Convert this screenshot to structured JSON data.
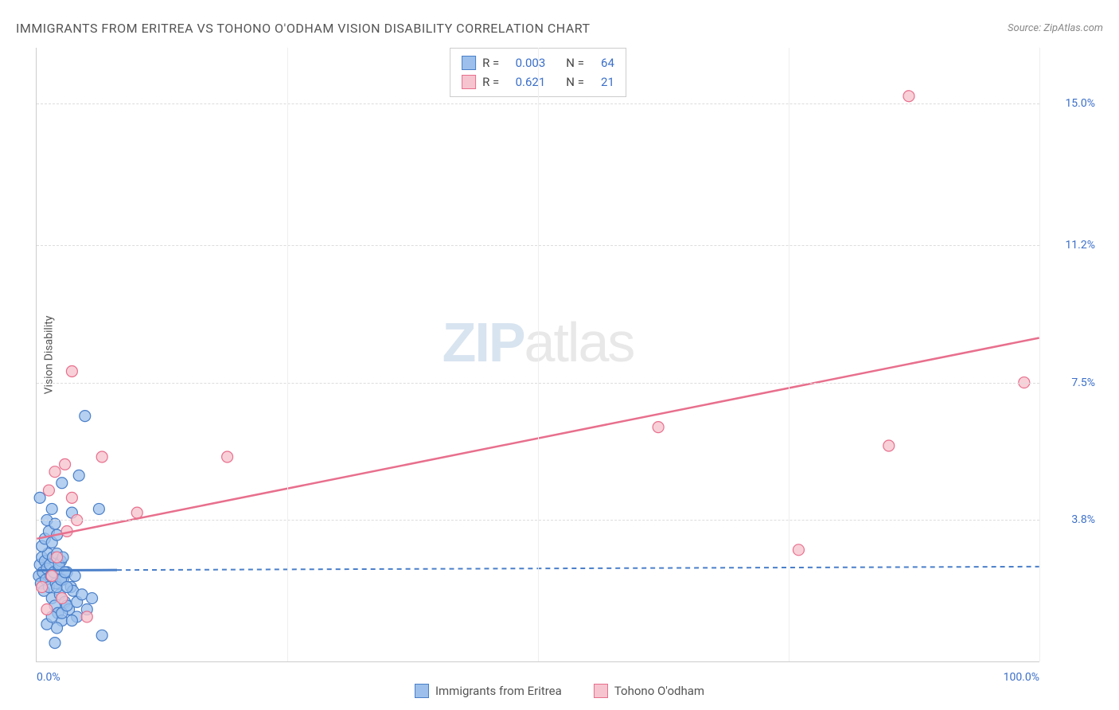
{
  "title": "IMMIGRANTS FROM ERITREA VS TOHONO O'ODHAM VISION DISABILITY CORRELATION CHART",
  "source_label": "Source: ZipAtlas.com",
  "y_axis_label": "Vision Disability",
  "watermark_a": "ZIP",
  "watermark_b": "atlas",
  "chart": {
    "type": "scatter",
    "background_color": "#ffffff",
    "grid_color": "#dddddd",
    "axis_color": "#cccccc",
    "tick_label_color": "#3b6fc9",
    "xlim": [
      0,
      100
    ],
    "ylim": [
      0,
      16.5
    ],
    "x_ticks": [
      {
        "pos": 0,
        "label": "0.0%"
      },
      {
        "pos": 100,
        "label": "100.0%"
      }
    ],
    "x_gridlines": [
      25,
      50,
      75,
      100
    ],
    "y_ticks": [
      {
        "pos": 3.8,
        "label": "3.8%"
      },
      {
        "pos": 7.5,
        "label": "7.5%"
      },
      {
        "pos": 11.2,
        "label": "11.2%"
      },
      {
        "pos": 15.0,
        "label": "15.0%"
      }
    ],
    "series": [
      {
        "key": "eritrea",
        "label": "Immigrants from Eritrea",
        "color_fill": "#9cc0eb",
        "color_stroke": "#4a7fc9",
        "marker_radius": 7,
        "marker_opacity": 0.75,
        "R": "0.003",
        "N": "64",
        "trend": {
          "x1": 0,
          "y1": 2.45,
          "x2": 100,
          "y2": 2.55,
          "dash": "6,5",
          "width": 2,
          "solid_until_x": 8
        },
        "points": [
          [
            0.2,
            2.3
          ],
          [
            0.3,
            2.6
          ],
          [
            0.4,
            2.1
          ],
          [
            0.5,
            2.8
          ],
          [
            0.6,
            2.4
          ],
          [
            0.7,
            1.9
          ],
          [
            0.8,
            2.7
          ],
          [
            0.9,
            2.2
          ],
          [
            1.0,
            2.5
          ],
          [
            1.1,
            2.9
          ],
          [
            1.2,
            2.0
          ],
          [
            1.3,
            2.6
          ],
          [
            1.4,
            2.3
          ],
          [
            1.5,
            1.7
          ],
          [
            1.6,
            2.8
          ],
          [
            1.7,
            2.4
          ],
          [
            1.8,
            1.5
          ],
          [
            1.9,
            2.1
          ],
          [
            2.0,
            2.9
          ],
          [
            2.1,
            1.3
          ],
          [
            2.2,
            2.5
          ],
          [
            2.3,
            1.8
          ],
          [
            2.4,
            2.7
          ],
          [
            2.5,
            1.1
          ],
          [
            2.6,
            2.2
          ],
          [
            2.8,
            1.6
          ],
          [
            3.0,
            2.4
          ],
          [
            3.2,
            1.4
          ],
          [
            3.4,
            2.0
          ],
          [
            3.6,
            1.9
          ],
          [
            3.8,
            2.3
          ],
          [
            4.0,
            1.2
          ],
          [
            0.5,
            3.1
          ],
          [
            0.8,
            3.3
          ],
          [
            1.2,
            3.5
          ],
          [
            1.5,
            3.2
          ],
          [
            2.0,
            3.4
          ],
          [
            1.0,
            3.8
          ],
          [
            1.8,
            3.7
          ],
          [
            0.3,
            4.4
          ],
          [
            1.5,
            4.1
          ],
          [
            3.5,
            4.0
          ],
          [
            6.2,
            4.1
          ],
          [
            2.5,
            4.8
          ],
          [
            4.2,
            5.0
          ],
          [
            4.8,
            6.6
          ],
          [
            1.0,
            1.0
          ],
          [
            1.5,
            1.2
          ],
          [
            2.0,
            0.9
          ],
          [
            2.5,
            1.3
          ],
          [
            3.0,
            1.5
          ],
          [
            3.5,
            1.1
          ],
          [
            4.0,
            1.6
          ],
          [
            4.5,
            1.8
          ],
          [
            5.0,
            1.4
          ],
          [
            5.5,
            1.7
          ],
          [
            6.5,
            0.7
          ],
          [
            1.8,
            0.5
          ],
          [
            2.0,
            2.0
          ],
          [
            2.2,
            2.6
          ],
          [
            2.4,
            2.2
          ],
          [
            2.6,
            2.8
          ],
          [
            2.8,
            2.4
          ],
          [
            3.0,
            2.0
          ]
        ]
      },
      {
        "key": "tohono",
        "label": "Tohono O'odham",
        "color_fill": "#f6c4ce",
        "color_stroke": "#e86f8d",
        "marker_radius": 7,
        "marker_opacity": 0.8,
        "R": "0.621",
        "N": "21",
        "trend": {
          "x1": 0,
          "y1": 3.3,
          "x2": 100,
          "y2": 8.7,
          "dash": "",
          "width": 2.5
        },
        "points": [
          [
            0.5,
            2.0
          ],
          [
            1.0,
            1.4
          ],
          [
            1.5,
            2.3
          ],
          [
            2.0,
            2.8
          ],
          [
            2.5,
            1.7
          ],
          [
            3.0,
            3.5
          ],
          [
            3.5,
            4.4
          ],
          [
            1.2,
            4.6
          ],
          [
            1.8,
            5.1
          ],
          [
            2.8,
            5.3
          ],
          [
            6.5,
            5.5
          ],
          [
            10.0,
            4.0
          ],
          [
            3.5,
            7.8
          ],
          [
            4.0,
            3.8
          ],
          [
            19.0,
            5.5
          ],
          [
            62.0,
            6.3
          ],
          [
            76.0,
            3.0
          ],
          [
            85.0,
            5.8
          ],
          [
            87.0,
            15.2
          ],
          [
            98.5,
            7.5
          ],
          [
            5.0,
            1.2
          ]
        ]
      }
    ]
  },
  "legend_stats_header": {
    "R": "R =",
    "N": "N ="
  }
}
